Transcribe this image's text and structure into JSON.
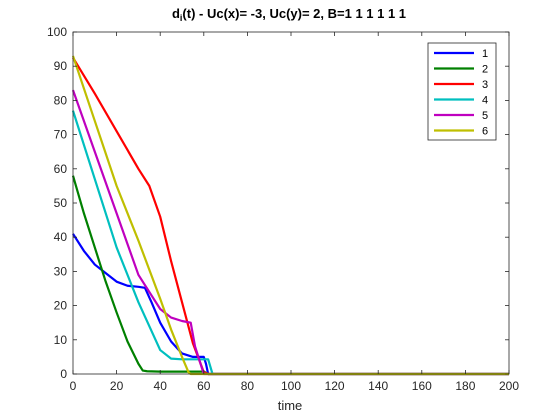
{
  "chart_data": {
    "type": "line",
    "title_main": "d",
    "title_sub": "i",
    "title_rest": "(t) -    Uc(x)= -3, Uc(y)= 2, B=1  1  1  1  1  1",
    "xlabel": "time",
    "ylabel": "",
    "xlim": [
      0,
      200
    ],
    "ylim": [
      0,
      100
    ],
    "xticks": [
      "0",
      "20",
      "40",
      "60",
      "80",
      "100",
      "120",
      "140",
      "160",
      "180",
      "200"
    ],
    "yticks": [
      "0",
      "10",
      "20",
      "30",
      "40",
      "50",
      "60",
      "70",
      "80",
      "90",
      "100"
    ],
    "grid": false,
    "legend_position": "top-right",
    "series": [
      {
        "name": "1",
        "color": "#0000ff",
        "x": [
          0,
          5,
          10,
          15,
          20,
          25,
          30,
          33,
          36,
          40,
          45,
          50,
          55,
          60,
          61,
          62,
          200
        ],
        "y": [
          41,
          36,
          32,
          29.5,
          27,
          25.8,
          25.5,
          25.2,
          21,
          15,
          9.5,
          6,
          5,
          5,
          3,
          0,
          0
        ]
      },
      {
        "name": "2",
        "color": "#008000",
        "x": [
          0,
          5,
          10,
          15,
          20,
          25,
          30,
          32,
          34,
          40,
          60,
          62,
          200
        ],
        "y": [
          58,
          47,
          37,
          27,
          18,
          9.5,
          3,
          1,
          0.8,
          0.7,
          0.7,
          0,
          0
        ]
      },
      {
        "name": "3",
        "color": "#ff0000",
        "x": [
          0,
          10,
          20,
          30,
          35,
          40,
          45,
          50,
          55,
          60,
          62,
          200
        ],
        "y": [
          92.5,
          82,
          71,
          60,
          55,
          46,
          33,
          21,
          9,
          0.5,
          0,
          0
        ]
      },
      {
        "name": "4",
        "color": "#00bfbf",
        "x": [
          0,
          10,
          20,
          30,
          40,
          45,
          50,
          55,
          60,
          62,
          64,
          200
        ],
        "y": [
          77,
          57,
          37,
          21,
          7,
          4.5,
          4.3,
          4.3,
          4.3,
          4.3,
          0,
          0
        ]
      },
      {
        "name": "5",
        "color": "#bf00bf",
        "x": [
          0,
          10,
          20,
          30,
          35,
          40,
          45,
          50,
          54,
          56,
          60,
          200
        ],
        "y": [
          83,
          65,
          47,
          29,
          24,
          19,
          16.5,
          15.5,
          15,
          8,
          0,
          0
        ]
      },
      {
        "name": "6",
        "color": "#bfbf00",
        "x": [
          0,
          10,
          20,
          30,
          40,
          45,
          50,
          53,
          54,
          200
        ],
        "y": [
          93,
          74,
          55,
          39,
          22,
          13,
          5,
          0.5,
          0,
          0
        ]
      }
    ]
  }
}
